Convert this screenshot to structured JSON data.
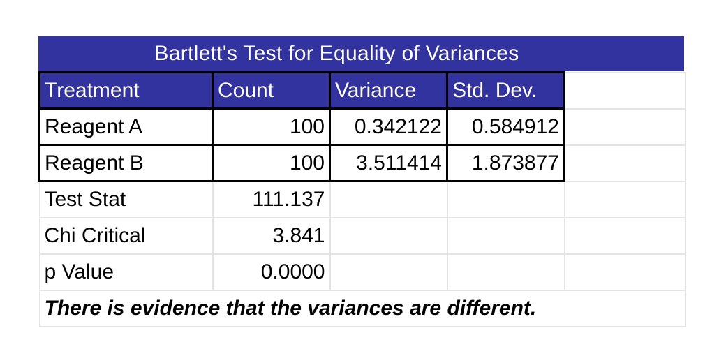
{
  "title": "Bartlett's Test for Equality of Variances",
  "headers": [
    "Treatment",
    "Count",
    "Variance",
    "Std. Dev."
  ],
  "rows": [
    {
      "treatment": "Reagent A",
      "count": "100",
      "variance": "0.342122",
      "std_dev": "0.584912"
    },
    {
      "treatment": "Reagent B",
      "count": "100",
      "variance": "3.511414",
      "std_dev": "1.873877"
    }
  ],
  "stats": [
    {
      "label": "Test Stat",
      "value": "111.137"
    },
    {
      "label": "Chi Critical",
      "value": "3.841"
    },
    {
      "label": "p Value",
      "value": "0.0000"
    }
  ],
  "conclusion": "There is evidence that the variances are different.",
  "colors": {
    "header_fill": "#3333a0",
    "header_text": "#ffffff",
    "gridline": "#e4e4e4"
  }
}
